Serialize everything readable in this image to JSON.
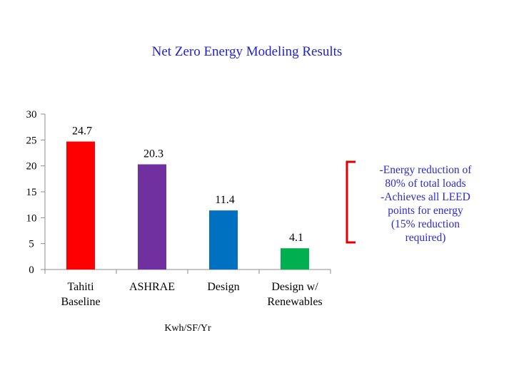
{
  "chart_data": {
    "type": "bar",
    "title": "Net Zero Energy Modeling Results",
    "xlabel": "Kwh/SF/Yr",
    "ylabel": "",
    "categories": [
      [
        "Tahiti",
        "Baseline"
      ],
      [
        "ASHRAE"
      ],
      [
        "Design"
      ],
      [
        "Design w/",
        "Renewables"
      ]
    ],
    "values": [
      24.7,
      20.3,
      11.4,
      4.1
    ],
    "value_labels": [
      "24.7",
      "20.3",
      "11.4",
      "4.1"
    ],
    "bar_colors": [
      "#ff0000",
      "#7030a0",
      "#0070c0",
      "#00b050"
    ],
    "ylim": [
      0,
      30
    ],
    "yticks": [
      0,
      5,
      10,
      15,
      20,
      25,
      30
    ],
    "grid": false,
    "legend": "none"
  },
  "annotation": {
    "lines": [
      "-Energy reduction of",
      "80% of total loads",
      "-Achieves all LEED",
      "points for energy",
      "(15% reduction",
      "required)"
    ],
    "bracket_color": "#e00000",
    "text_color": "#2a2ad0"
  }
}
